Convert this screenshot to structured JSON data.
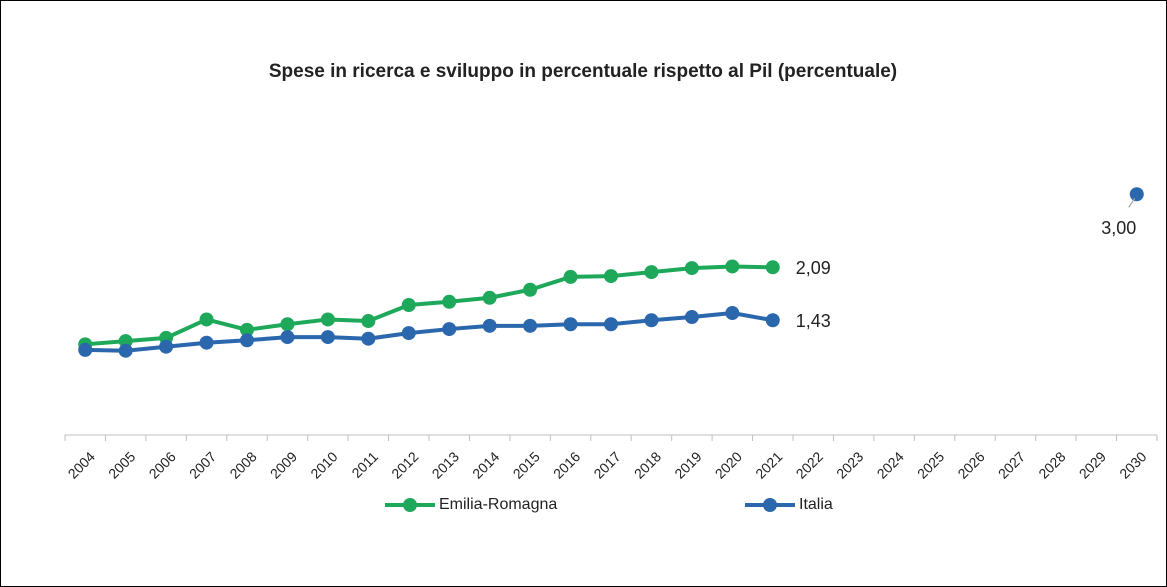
{
  "chart_data": {
    "type": "line",
    "title": "Spese in ricerca e sviluppo in percentuale rispetto al Pil (percentuale)",
    "categories": [
      "2004",
      "2005",
      "2006",
      "2007",
      "2008",
      "2009",
      "2010",
      "2011",
      "2012",
      "2013",
      "2014",
      "2015",
      "2016",
      "2017",
      "2018",
      "2019",
      "2020",
      "2021",
      "2022",
      "2023",
      "2024",
      "2025",
      "2026",
      "2027",
      "2028",
      "2029",
      "2030"
    ],
    "series": [
      {
        "name": "Emilia-Romagna",
        "color": "#1ea85a",
        "values": [
          1.13,
          1.17,
          1.21,
          1.44,
          1.31,
          1.38,
          1.44,
          1.42,
          1.62,
          1.66,
          1.71,
          1.81,
          1.97,
          1.98,
          2.03,
          2.08,
          2.1,
          2.09,
          null,
          null,
          null,
          null,
          null,
          null,
          null,
          null,
          null
        ],
        "value_labels": [
          null,
          null,
          null,
          null,
          null,
          null,
          null,
          null,
          null,
          null,
          null,
          null,
          null,
          null,
          null,
          null,
          null,
          "2,09",
          null,
          null,
          null,
          null,
          null,
          null,
          null,
          null,
          null
        ]
      },
      {
        "name": "Italia",
        "color": "#2b67ad",
        "values": [
          1.06,
          1.05,
          1.1,
          1.15,
          1.18,
          1.22,
          1.22,
          1.2,
          1.27,
          1.32,
          1.36,
          1.36,
          1.38,
          1.38,
          1.43,
          1.47,
          1.52,
          1.43,
          null,
          null,
          null,
          null,
          null,
          null,
          null,
          null,
          null
        ],
        "value_labels": [
          null,
          null,
          null,
          null,
          null,
          null,
          null,
          null,
          null,
          null,
          null,
          null,
          null,
          null,
          null,
          null,
          null,
          "1,43",
          null,
          null,
          null,
          null,
          null,
          null,
          null,
          null,
          null
        ]
      },
      {
        "color": "#2b67ad",
        "values": [
          null,
          null,
          null,
          null,
          null,
          null,
          null,
          null,
          null,
          null,
          null,
          null,
          null,
          null,
          null,
          null,
          null,
          null,
          null,
          null,
          null,
          null,
          null,
          null,
          null,
          null,
          3.0
        ],
        "value_labels": [
          null,
          null,
          null,
          null,
          null,
          null,
          null,
          null,
          null,
          null,
          null,
          null,
          null,
          null,
          null,
          null,
          null,
          null,
          null,
          null,
          null,
          null,
          null,
          null,
          null,
          null,
          "3,00"
        ]
      }
    ],
    "ylim": [
      0,
      4
    ],
    "legend": "bottom"
  }
}
